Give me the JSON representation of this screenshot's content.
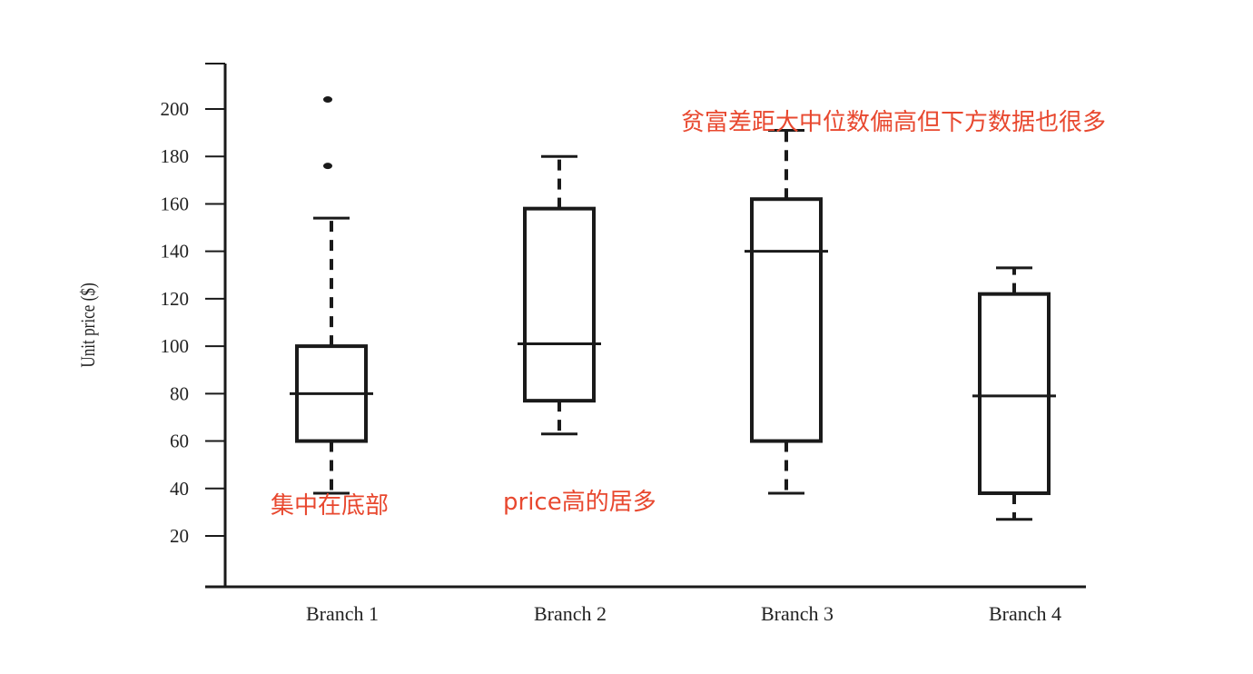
{
  "chart_data": {
    "type": "box",
    "title": "",
    "xlabel": "",
    "ylabel": "Unit price ($)",
    "ylim": [
      0,
      220
    ],
    "yticks": [
      20,
      40,
      60,
      80,
      100,
      120,
      140,
      160,
      180,
      200
    ],
    "categories": [
      "Branch 1",
      "Branch 2",
      "Branch 3",
      "Branch 4"
    ],
    "boxes": [
      {
        "category": "Branch 1",
        "whisker_low": 38,
        "q1": 60,
        "median": 80,
        "q3": 100,
        "whisker_high": 154,
        "outliers": [
          176,
          204
        ]
      },
      {
        "category": "Branch 2",
        "whisker_low": 63,
        "q1": 77,
        "median": 101,
        "q3": 158,
        "whisker_high": 180,
        "outliers": []
      },
      {
        "category": "Branch 3",
        "whisker_low": 38,
        "q1": 60,
        "median": 140,
        "q3": 162,
        "whisker_high": 191,
        "outliers": []
      },
      {
        "category": "Branch 4",
        "whisker_low": 27,
        "q1": 38,
        "median": 79,
        "q3": 122,
        "whisker_high": 133,
        "outliers": []
      }
    ],
    "annotations": [
      {
        "text": "贫富差距大中位数偏高但下方数据也很多",
        "color": "#e8482f",
        "near": "Branch 3"
      },
      {
        "text": "集中在底部",
        "color": "#e8482f",
        "near": "Branch 1"
      },
      {
        "text": "price高的居多",
        "color": "#e8482f",
        "near": "Branch 2"
      }
    ],
    "grid": false,
    "legend": "none",
    "colors": {
      "ink": "#1a1a1a",
      "annotation": "#e8482f"
    }
  }
}
